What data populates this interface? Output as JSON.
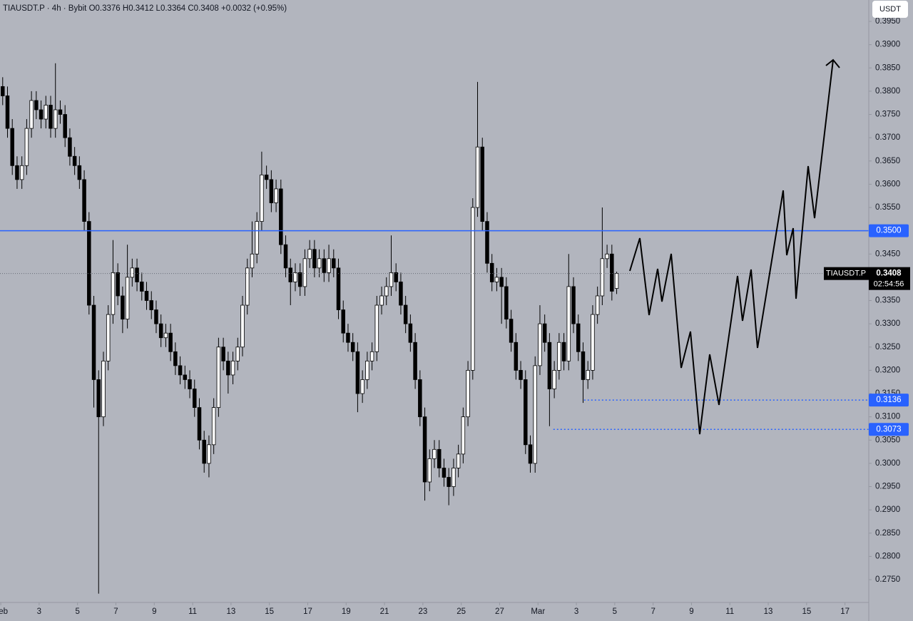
{
  "chart_data": {
    "type": "candlestick",
    "header": "TIAUSDT.P · 4h · Bybit  O0.3376 H0.3412 L0.3364 C0.3408 +0.0032 (+0.95%)",
    "currency": "USDT",
    "symbol": "TIAUSDT.P",
    "countdown": "02:54:56",
    "xlim": [
      -0.04,
      45.24
    ],
    "ylim": [
      0.2701,
      0.3996
    ],
    "xticks": [
      {
        "value": 0,
        "label": "Feb"
      },
      {
        "value": 2,
        "label": "3"
      },
      {
        "value": 4,
        "label": "5"
      },
      {
        "value": 6,
        "label": "7"
      },
      {
        "value": 8,
        "label": "9"
      },
      {
        "value": 10,
        "label": "11"
      },
      {
        "value": 12,
        "label": "13"
      },
      {
        "value": 14,
        "label": "15"
      },
      {
        "value": 16,
        "label": "17"
      },
      {
        "value": 18,
        "label": "19"
      },
      {
        "value": 20,
        "label": "21"
      },
      {
        "value": 22,
        "label": "23"
      },
      {
        "value": 24,
        "label": "25"
      },
      {
        "value": 26,
        "label": "27"
      },
      {
        "value": 28,
        "label": "Mar"
      },
      {
        "value": 30,
        "label": "3"
      },
      {
        "value": 32,
        "label": "5"
      },
      {
        "value": 34,
        "label": "7"
      },
      {
        "value": 36,
        "label": "9"
      },
      {
        "value": 38,
        "label": "11"
      },
      {
        "value": 40,
        "label": "13"
      },
      {
        "value": 42,
        "label": "15"
      },
      {
        "value": 44,
        "label": "17"
      }
    ],
    "yticks": [
      {
        "value": 0.395,
        "label": "0.3950"
      },
      {
        "value": 0.39,
        "label": "0.3900"
      },
      {
        "value": 0.385,
        "label": "0.3850"
      },
      {
        "value": 0.38,
        "label": "0.3800"
      },
      {
        "value": 0.375,
        "label": "0.3750"
      },
      {
        "value": 0.37,
        "label": "0.3700"
      },
      {
        "value": 0.365,
        "label": "0.3650"
      },
      {
        "value": 0.36,
        "label": "0.3600"
      },
      {
        "value": 0.355,
        "label": "0.3550"
      },
      {
        "value": 0.35,
        "label": "0.3500"
      },
      {
        "value": 0.345,
        "label": "0.3450"
      },
      {
        "value": 0.34,
        "label": "0.3400"
      },
      {
        "value": 0.335,
        "label": "0.3350"
      },
      {
        "value": 0.33,
        "label": "0.3300"
      },
      {
        "value": 0.325,
        "label": "0.3250"
      },
      {
        "value": 0.32,
        "label": "0.3200"
      },
      {
        "value": 0.315,
        "label": "0.3150"
      },
      {
        "value": 0.31,
        "label": "0.3100"
      },
      {
        "value": 0.305,
        "label": "0.3050"
      },
      {
        "value": 0.3,
        "label": "0.3000"
      },
      {
        "value": 0.295,
        "label": "0.2950"
      },
      {
        "value": 0.29,
        "label": "0.2900"
      },
      {
        "value": 0.285,
        "label": "0.2850"
      },
      {
        "value": 0.28,
        "label": "0.2800"
      },
      {
        "value": 0.275,
        "label": "0.2750"
      }
    ],
    "levels": [
      {
        "value": 0.35,
        "label": "0.3500",
        "color": "#2962ff",
        "style": "solid",
        "start": -0.04
      },
      {
        "value": 0.3136,
        "label": "0.3136",
        "color": "#2962ff",
        "style": "dotted",
        "start": 30.4
      },
      {
        "value": 0.3073,
        "label": "0.3073",
        "color": "#2962ff",
        "style": "dotted",
        "start": 28.8
      }
    ],
    "last_price": {
      "value": 0.3408,
      "label": "0.3408"
    },
    "x": [
      0.1,
      0.35,
      0.6,
      0.85,
      1.1,
      1.35,
      1.6,
      1.85,
      2.1,
      2.35,
      2.6,
      2.85,
      3.1,
      3.35,
      3.6,
      3.85,
      4.1,
      4.35,
      4.6,
      4.85,
      5.1,
      5.35,
      5.6,
      5.85,
      6.1,
      6.35,
      6.6,
      6.85,
      7.1,
      7.35,
      7.6,
      7.85,
      8.1,
      8.35,
      8.6,
      8.85,
      9.1,
      9.35,
      9.6,
      9.85,
      10.1,
      10.35,
      10.6,
      10.85,
      11.1,
      11.35,
      11.6,
      11.85,
      12.1,
      12.35,
      12.6,
      12.85,
      13.1,
      13.35,
      13.6,
      13.85,
      14.1,
      14.35,
      14.6,
      14.85,
      15.1,
      15.35,
      15.6,
      15.85,
      16.1,
      16.35,
      16.6,
      16.85,
      17.1,
      17.35,
      17.6,
      17.85,
      18.1,
      18.35,
      18.6,
      18.85,
      19.1,
      19.35,
      19.6,
      19.85,
      20.1,
      20.35,
      20.6,
      20.85,
      21.1,
      21.35,
      21.6,
      21.85,
      22.1,
      22.35,
      22.6,
      22.85,
      23.1,
      23.35,
      23.6,
      23.85,
      24.1,
      24.35,
      24.6,
      24.85,
      25.1,
      25.35,
      25.6,
      25.85,
      26.1,
      26.35,
      26.6,
      26.85,
      27.1,
      27.35,
      27.6,
      27.85,
      28.1,
      28.35,
      28.6,
      28.85,
      29.1,
      29.35,
      29.6,
      29.85,
      30.1,
      30.35,
      30.6,
      30.85,
      31.1,
      31.35,
      31.6,
      31.85,
      32.1
    ],
    "candles": [
      [
        0.381,
        0.383,
        0.377,
        0.379
      ],
      [
        0.379,
        0.381,
        0.37,
        0.372
      ],
      [
        0.372,
        0.374,
        0.362,
        0.364
      ],
      [
        0.364,
        0.366,
        0.359,
        0.361
      ],
      [
        0.361,
        0.366,
        0.359,
        0.364
      ],
      [
        0.364,
        0.374,
        0.362,
        0.372
      ],
      [
        0.372,
        0.38,
        0.37,
        0.378
      ],
      [
        0.378,
        0.38,
        0.374,
        0.376
      ],
      [
        0.376,
        0.378,
        0.372,
        0.374
      ],
      [
        0.374,
        0.379,
        0.372,
        0.377
      ],
      [
        0.377,
        0.379,
        0.37,
        0.372
      ],
      [
        0.372,
        0.386,
        0.37,
        0.376
      ],
      [
        0.376,
        0.378,
        0.373,
        0.375
      ],
      [
        0.375,
        0.377,
        0.368,
        0.37
      ],
      [
        0.37,
        0.372,
        0.364,
        0.366
      ],
      [
        0.366,
        0.368,
        0.362,
        0.364
      ],
      [
        0.364,
        0.366,
        0.359,
        0.361
      ],
      [
        0.361,
        0.363,
        0.35,
        0.352
      ],
      [
        0.352,
        0.354,
        0.332,
        0.334
      ],
      [
        0.334,
        0.336,
        0.312,
        0.318
      ],
      [
        0.318,
        0.32,
        0.272,
        0.31
      ],
      [
        0.31,
        0.324,
        0.308,
        0.322
      ],
      [
        0.322,
        0.334,
        0.32,
        0.332
      ],
      [
        0.332,
        0.348,
        0.33,
        0.341
      ],
      [
        0.341,
        0.343,
        0.334,
        0.336
      ],
      [
        0.336,
        0.338,
        0.328,
        0.331
      ],
      [
        0.331,
        0.347,
        0.329,
        0.34
      ],
      [
        0.34,
        0.344,
        0.338,
        0.342
      ],
      [
        0.342,
        0.344,
        0.337,
        0.339
      ],
      [
        0.339,
        0.341,
        0.335,
        0.337
      ],
      [
        0.337,
        0.339,
        0.333,
        0.335
      ],
      [
        0.335,
        0.337,
        0.331,
        0.333
      ],
      [
        0.333,
        0.335,
        0.328,
        0.33
      ],
      [
        0.33,
        0.332,
        0.325,
        0.327
      ],
      [
        0.327,
        0.33,
        0.325,
        0.328
      ],
      [
        0.328,
        0.33,
        0.322,
        0.324
      ],
      [
        0.324,
        0.326,
        0.319,
        0.321
      ],
      [
        0.321,
        0.323,
        0.317,
        0.319
      ],
      [
        0.319,
        0.321,
        0.316,
        0.318
      ],
      [
        0.318,
        0.32,
        0.314,
        0.316
      ],
      [
        0.316,
        0.318,
        0.31,
        0.312
      ],
      [
        0.312,
        0.314,
        0.303,
        0.305
      ],
      [
        0.305,
        0.307,
        0.298,
        0.3
      ],
      [
        0.3,
        0.306,
        0.297,
        0.304
      ],
      [
        0.304,
        0.314,
        0.302,
        0.312
      ],
      [
        0.312,
        0.327,
        0.31,
        0.325
      ],
      [
        0.325,
        0.327,
        0.32,
        0.322
      ],
      [
        0.322,
        0.324,
        0.315,
        0.319
      ],
      [
        0.319,
        0.324,
        0.317,
        0.322
      ],
      [
        0.322,
        0.327,
        0.32,
        0.325
      ],
      [
        0.325,
        0.336,
        0.323,
        0.334
      ],
      [
        0.334,
        0.344,
        0.332,
        0.342
      ],
      [
        0.342,
        0.352,
        0.34,
        0.345
      ],
      [
        0.345,
        0.354,
        0.343,
        0.352
      ],
      [
        0.352,
        0.367,
        0.35,
        0.362
      ],
      [
        0.362,
        0.364,
        0.359,
        0.361
      ],
      [
        0.361,
        0.363,
        0.354,
        0.356
      ],
      [
        0.356,
        0.361,
        0.354,
        0.359
      ],
      [
        0.359,
        0.361,
        0.345,
        0.347
      ],
      [
        0.347,
        0.349,
        0.34,
        0.342
      ],
      [
        0.342,
        0.344,
        0.334,
        0.339
      ],
      [
        0.339,
        0.343,
        0.337,
        0.341
      ],
      [
        0.341,
        0.343,
        0.336,
        0.338
      ],
      [
        0.338,
        0.346,
        0.336,
        0.344
      ],
      [
        0.344,
        0.348,
        0.342,
        0.346
      ],
      [
        0.346,
        0.348,
        0.34,
        0.342
      ],
      [
        0.342,
        0.346,
        0.34,
        0.344
      ],
      [
        0.344,
        0.346,
        0.339,
        0.341
      ],
      [
        0.341,
        0.347,
        0.339,
        0.344
      ],
      [
        0.344,
        0.346,
        0.34,
        0.342
      ],
      [
        0.342,
        0.344,
        0.331,
        0.333
      ],
      [
        0.333,
        0.335,
        0.326,
        0.328
      ],
      [
        0.328,
        0.33,
        0.324,
        0.326
      ],
      [
        0.326,
        0.328,
        0.322,
        0.324
      ],
      [
        0.324,
        0.326,
        0.311,
        0.315
      ],
      [
        0.315,
        0.32,
        0.313,
        0.318
      ],
      [
        0.318,
        0.324,
        0.316,
        0.322
      ],
      [
        0.322,
        0.326,
        0.32,
        0.324
      ],
      [
        0.324,
        0.336,
        0.322,
        0.334
      ],
      [
        0.334,
        0.338,
        0.332,
        0.336
      ],
      [
        0.336,
        0.34,
        0.334,
        0.338
      ],
      [
        0.338,
        0.349,
        0.336,
        0.341
      ],
      [
        0.341,
        0.343,
        0.337,
        0.339
      ],
      [
        0.339,
        0.341,
        0.332,
        0.334
      ],
      [
        0.334,
        0.336,
        0.328,
        0.33
      ],
      [
        0.33,
        0.332,
        0.324,
        0.326
      ],
      [
        0.326,
        0.328,
        0.316,
        0.318
      ],
      [
        0.318,
        0.32,
        0.308,
        0.31
      ],
      [
        0.31,
        0.312,
        0.292,
        0.296
      ],
      [
        0.296,
        0.303,
        0.294,
        0.301
      ],
      [
        0.301,
        0.305,
        0.299,
        0.303
      ],
      [
        0.303,
        0.305,
        0.297,
        0.299
      ],
      [
        0.299,
        0.301,
        0.295,
        0.297
      ],
      [
        0.297,
        0.299,
        0.291,
        0.295
      ],
      [
        0.295,
        0.301,
        0.293,
        0.299
      ],
      [
        0.299,
        0.304,
        0.297,
        0.302
      ],
      [
        0.302,
        0.312,
        0.3,
        0.31
      ],
      [
        0.31,
        0.322,
        0.308,
        0.32
      ],
      [
        0.32,
        0.357,
        0.318,
        0.355
      ],
      [
        0.355,
        0.382,
        0.353,
        0.368
      ],
      [
        0.368,
        0.37,
        0.35,
        0.352
      ],
      [
        0.352,
        0.354,
        0.341,
        0.343
      ],
      [
        0.343,
        0.345,
        0.337,
        0.339
      ],
      [
        0.339,
        0.342,
        0.337,
        0.34
      ],
      [
        0.34,
        0.342,
        0.33,
        0.338
      ],
      [
        0.338,
        0.34,
        0.329,
        0.331
      ],
      [
        0.331,
        0.333,
        0.324,
        0.326
      ],
      [
        0.326,
        0.328,
        0.318,
        0.32
      ],
      [
        0.32,
        0.322,
        0.316,
        0.318
      ],
      [
        0.318,
        0.32,
        0.302,
        0.304
      ],
      [
        0.304,
        0.306,
        0.298,
        0.3
      ],
      [
        0.3,
        0.323,
        0.298,
        0.321
      ],
      [
        0.321,
        0.334,
        0.319,
        0.33
      ],
      [
        0.33,
        0.332,
        0.324,
        0.326
      ],
      [
        0.326,
        0.328,
        0.308,
        0.316
      ],
      [
        0.316,
        0.322,
        0.314,
        0.32
      ],
      [
        0.32,
        0.328,
        0.318,
        0.326
      ],
      [
        0.326,
        0.328,
        0.32,
        0.322
      ],
      [
        0.322,
        0.345,
        0.32,
        0.338
      ],
      [
        0.338,
        0.34,
        0.328,
        0.33
      ],
      [
        0.33,
        0.332,
        0.322,
        0.324
      ],
      [
        0.324,
        0.326,
        0.313,
        0.318
      ],
      [
        0.318,
        0.322,
        0.316,
        0.32
      ],
      [
        0.32,
        0.334,
        0.318,
        0.332
      ],
      [
        0.332,
        0.338,
        0.33,
        0.336
      ],
      [
        0.336,
        0.355,
        0.334,
        0.344
      ],
      [
        0.344,
        0.347,
        0.342,
        0.345
      ],
      [
        0.345,
        0.347,
        0.335,
        0.337
      ],
      [
        0.3376,
        0.3412,
        0.3364,
        0.3408
      ]
    ]
  }
}
